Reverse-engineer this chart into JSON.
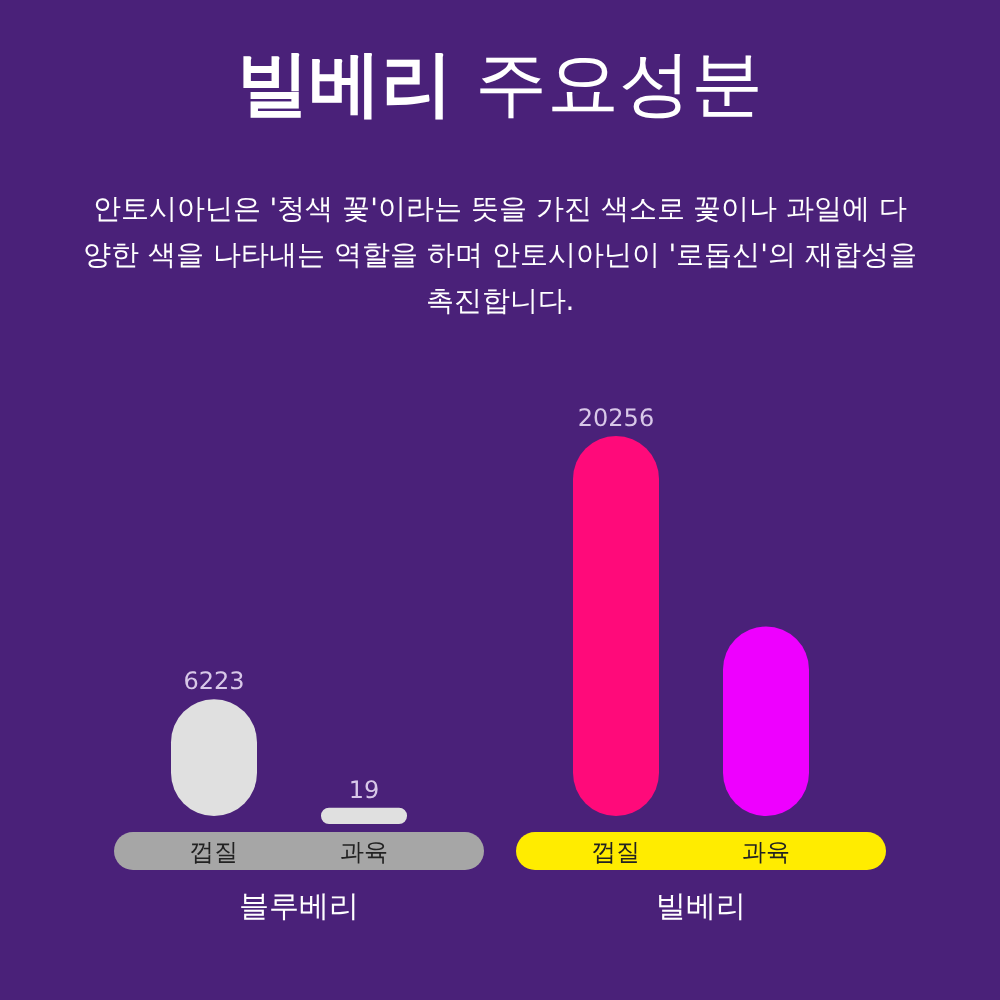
{
  "chart_data": {
    "type": "bar",
    "title": "빌베리 주요성분",
    "subtitle": "안토시아닌은 '청색 꽃'이라는 뜻을 가진 색소로 꽃이나 과일에 다양한 색을 나타내는 역할을 하며 안토시아닌이 '로돕신'의 재합성을 촉진합니다.",
    "categories": [
      "껍질",
      "과육",
      "껍질",
      "과육"
    ],
    "values": [
      6223,
      19,
      20256,
      10100
    ],
    "colors": [
      "#e0e0e0",
      "#e0e0e0",
      "#ff0a7a",
      "#ee00ff"
    ],
    "value_labels": [
      "6223",
      "19",
      "20256",
      null
    ],
    "annotations": [
      "블루베리",
      "빌베리"
    ]
  }
}
